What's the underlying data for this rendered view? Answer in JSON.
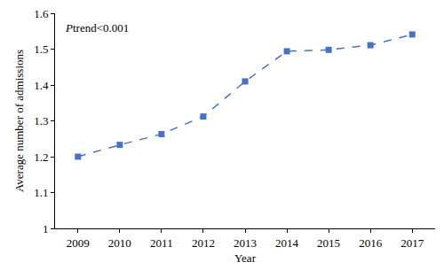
{
  "chart_data": {
    "type": "line",
    "x_label": "Year",
    "y_label": "Average number of admissions",
    "annotation": "Ptrend<0.001",
    "categories": [
      "2009",
      "2010",
      "2011",
      "2012",
      "2013",
      "2014",
      "2015",
      "2016",
      "2017"
    ],
    "values": [
      1.2,
      1.233,
      1.263,
      1.312,
      1.41,
      1.494,
      1.498,
      1.511,
      1.541
    ],
    "color": "#4472c4",
    "marker": "square",
    "line_style": "dash",
    "ylim": [
      1,
      1.6
    ],
    "yticks": [
      1,
      1.1,
      1.2,
      1.3,
      1.4,
      1.5,
      1.6
    ],
    "grid": false
  }
}
